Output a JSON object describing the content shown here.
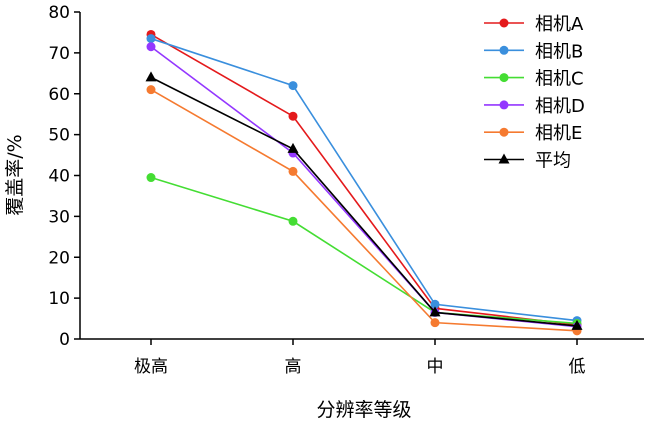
{
  "chart_data": {
    "type": "line",
    "categories": [
      "极高",
      "高",
      "中",
      "低"
    ],
    "series": [
      {
        "name": "相机A",
        "values": [
          74.5,
          54.5,
          7.5,
          3.5
        ],
        "color": "#e41a1c",
        "marker": "circle"
      },
      {
        "name": "相机B",
        "values": [
          73.5,
          62,
          8.5,
          4.5
        ],
        "color": "#3a8fdd",
        "marker": "circle"
      },
      {
        "name": "相机C",
        "values": [
          39.5,
          28.8,
          6.5,
          3.8
        ],
        "color": "#44dd33",
        "marker": "circle"
      },
      {
        "name": "相机D",
        "values": [
          71.5,
          45.5,
          6.5,
          3.0
        ],
        "color": "#9437ff",
        "marker": "circle"
      },
      {
        "name": "相机E",
        "values": [
          61,
          41,
          4,
          2
        ],
        "color": "#f57a30",
        "marker": "circle"
      },
      {
        "name": "平均",
        "values": [
          64,
          46.5,
          6.5,
          3.2
        ],
        "color": "#000000",
        "marker": "triangle"
      }
    ],
    "xlabel": "分辨率等级",
    "ylabel": "覆盖率/%",
    "ylim": [
      0,
      80
    ],
    "yticks": [
      "0",
      "10",
      "20",
      "30",
      "40",
      "50",
      "60",
      "70",
      "80"
    ],
    "grid": false,
    "legend": "top-right"
  }
}
